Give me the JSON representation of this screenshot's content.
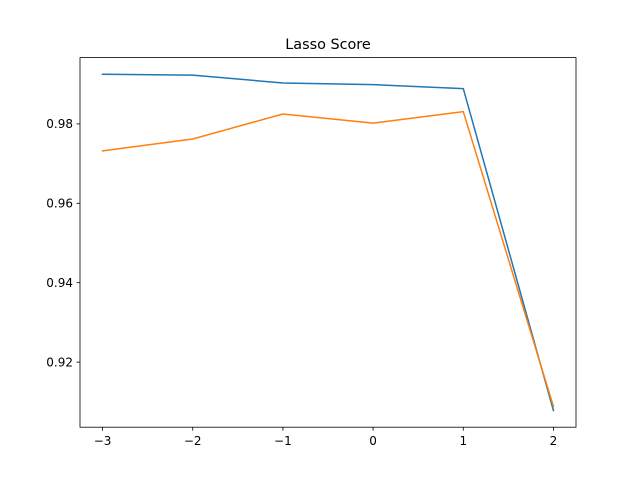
{
  "chart_data": {
    "type": "line",
    "title": "Lasso Score",
    "xlabel": "",
    "ylabel": "",
    "x": [
      -3,
      -2,
      -1,
      0,
      1,
      2
    ],
    "series": [
      {
        "values": [
          0.9925,
          0.9923,
          0.9903,
          0.9899,
          0.9889,
          0.9078
        ],
        "color": "#1f77b4"
      },
      {
        "values": [
          0.9732,
          0.9762,
          0.9825,
          0.9802,
          0.9831,
          0.9088
        ],
        "color": "#ff7f0e"
      }
    ],
    "xlim": [
      -3.25,
      2.25
    ],
    "ylim": [
      0.9036,
      0.9967
    ],
    "xticks": [
      -3,
      -2,
      -1,
      0,
      1,
      2
    ],
    "xtick_labels": [
      "−3",
      "−2",
      "−1",
      "0",
      "1",
      "2"
    ],
    "yticks": [
      0.92,
      0.94,
      0.96,
      0.98
    ],
    "ytick_labels": [
      "0.92",
      "0.94",
      "0.96",
      "0.98"
    ],
    "grid": false,
    "legend": "none"
  }
}
